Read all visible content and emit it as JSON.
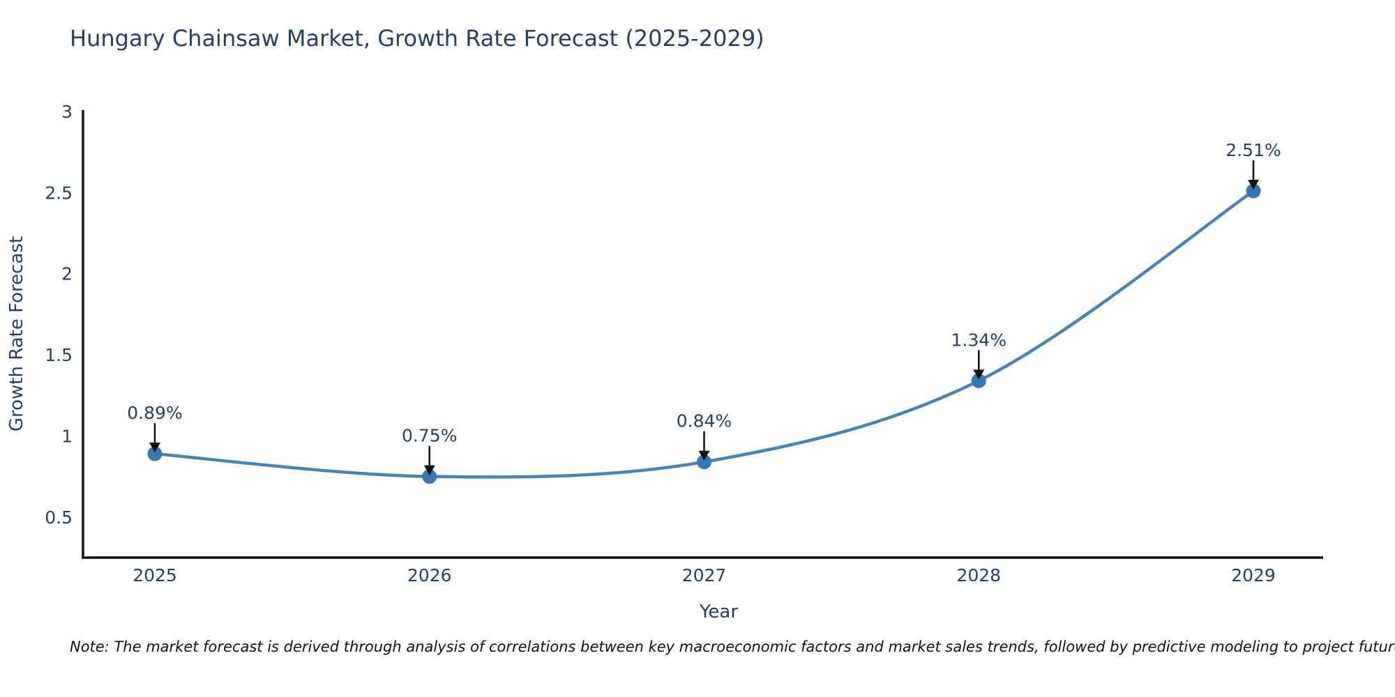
{
  "chart_data": {
    "type": "line",
    "title": "Hungary Chainsaw Market, Growth Rate Forecast (2025-2029)",
    "xlabel": "Year",
    "ylabel": "Growth Rate Forecast",
    "categories": [
      "2025",
      "2026",
      "2027",
      "2028",
      "2029"
    ],
    "series": [
      {
        "name": "Growth Rate Forecast",
        "values": [
          0.89,
          0.75,
          0.84,
          1.34,
          2.51
        ]
      }
    ],
    "data_labels": [
      "0.89%",
      "0.75%",
      "0.84%",
      "1.34%",
      "2.51%"
    ],
    "yticks": [
      0.5,
      1,
      1.5,
      2,
      2.5,
      3
    ],
    "ylim": [
      0.25,
      3
    ],
    "grid": false,
    "legend": false,
    "line_shape": "spline",
    "colors": {
      "line": "#4a83b2",
      "marker": "#3a76af",
      "axis": "#111111",
      "text": "#2a3f5f",
      "annotation_text": "#2a3f5f",
      "arrow": "#111111"
    },
    "note": "Note: The market forecast is derived through analysis of correlations between key macroeconomic factors and market sales trends, followed by predictive modeling to project future sales"
  }
}
